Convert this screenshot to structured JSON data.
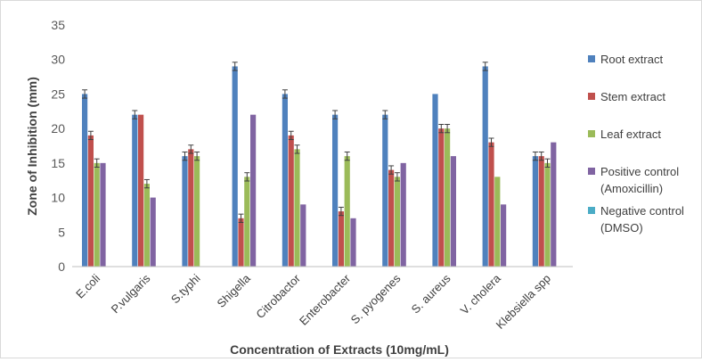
{
  "chart_data": {
    "type": "bar",
    "title": "",
    "xlabel": "Concentration of Extracts (10mg/mL)",
    "ylabel": "Zone of Inhibition (mm)",
    "ylim": [
      0,
      35
    ],
    "yticks": [
      0,
      5,
      10,
      15,
      20,
      25,
      30,
      35
    ],
    "grid": false,
    "legend_position": "right",
    "categories": [
      "E.coli",
      "P.vulgaris",
      "S.typhi",
      "Shigella",
      "Citrobactor",
      "Enterobacter",
      "S. pyogenes",
      "S. aureus",
      "V. cholera",
      "Klebsiella spp"
    ],
    "series": [
      {
        "name": "Root extract",
        "color": "#4F81BD",
        "values": [
          25,
          22,
          16,
          29,
          25,
          22,
          22,
          25,
          29,
          16
        ],
        "errors": [
          0.6,
          0.6,
          0.6,
          0.6,
          0.6,
          0.6,
          0.6,
          0,
          0.6,
          0.6
        ]
      },
      {
        "name": "Stem extract",
        "color": "#C0504D",
        "values": [
          19,
          22,
          17,
          7,
          19,
          8,
          14,
          20,
          18,
          16
        ],
        "errors": [
          0.6,
          0,
          0.6,
          0.6,
          0.6,
          0.6,
          0.6,
          0.6,
          0.6,
          0.6
        ]
      },
      {
        "name": "Leaf extract",
        "color": "#9BBB59",
        "values": [
          15,
          12,
          16,
          13,
          17,
          16,
          13,
          20,
          13,
          15
        ],
        "errors": [
          0.6,
          0.6,
          0.6,
          0.6,
          0.6,
          0.6,
          0.6,
          0.6,
          0,
          0.6
        ]
      },
      {
        "name": "Positive control (Amoxicillin)",
        "legend_lines": [
          "Positive control",
          "(Amoxicillin)"
        ],
        "color": "#8064A2",
        "values": [
          15,
          10,
          0,
          22,
          9,
          7,
          15,
          16,
          9,
          18
        ],
        "errors": [
          0,
          0,
          0,
          0,
          0,
          0,
          0,
          0,
          0,
          0
        ]
      },
      {
        "name": "Negative control (DMSO)",
        "legend_lines": [
          "Negative control",
          "(DMSO)"
        ],
        "color": "#4BACC6",
        "values": [
          0,
          0,
          0,
          0,
          0,
          0,
          0,
          0,
          0,
          0
        ],
        "errors": [
          0,
          0,
          0,
          0,
          0,
          0,
          0,
          0,
          0,
          0
        ]
      }
    ]
  }
}
